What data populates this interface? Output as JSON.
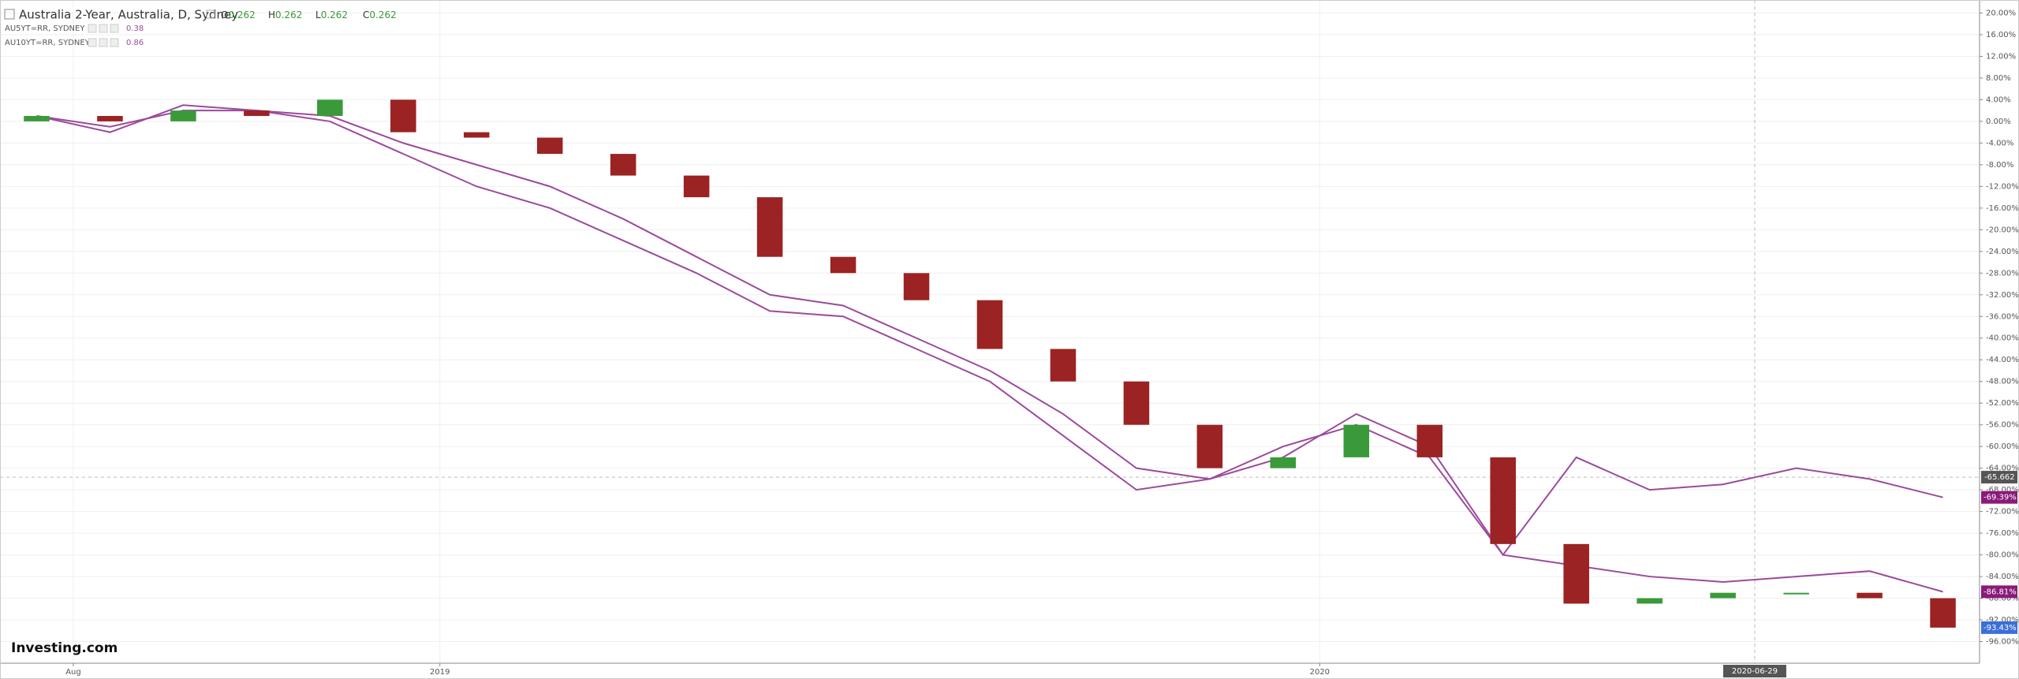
{
  "chart_data": {
    "type": "candlestick",
    "title": "Australia 2-Year, Australia, D, Sydney",
    "ohlc": [
      {
        "label": "O",
        "value": 0.262
      },
      {
        "label": "H",
        "value": 0.262
      },
      {
        "label": "L",
        "value": 0.262
      },
      {
        "label": "C",
        "value": 0.262
      }
    ],
    "x": [
      "2018-07",
      "2018-08",
      "2018-09",
      "2018-10",
      "2018-11",
      "2018-12",
      "2019-01",
      "2019-02",
      "2019-03",
      "2019-04",
      "2019-05",
      "2019-06",
      "2019-07",
      "2019-08",
      "2019-09",
      "2019-10",
      "2019-11",
      "2019-12",
      "2020-01",
      "2020-02",
      "2020-03",
      "2020-04",
      "2020-05",
      "2020-06",
      "2020-07",
      "2020-08",
      "2020-09"
    ],
    "open": [
      0,
      1,
      0,
      2,
      1,
      4,
      -2,
      -3,
      -6,
      -10,
      -14,
      -25,
      -28,
      -33,
      -42,
      -48,
      -56,
      -64,
      -62,
      -56,
      -62,
      -78,
      -89,
      -88,
      -87,
      -87,
      -88
    ],
    "close": [
      1,
      0,
      2,
      1,
      4,
      -2,
      -3,
      -6,
      -10,
      -14,
      -25,
      -28,
      -33,
      -42,
      -48,
      -56,
      -64,
      -62,
      -56,
      -62,
      -78,
      -89,
      -88,
      -87,
      -87,
      -88,
      -93.43
    ],
    "close_last_label": "-93.43%",
    "up_color": "#3a9a3a",
    "down_color": "#9b2323",
    "series": [
      {
        "name": "AU5YT=RR, SYDNEY",
        "legend_value": 0.38,
        "color": "#9c4a9c",
        "last_label": "-86.81%",
        "values": [
          1,
          -1,
          2,
          2,
          1,
          -4,
          -8,
          -12,
          -18,
          -25,
          -32,
          -34,
          -40,
          -46,
          -54,
          -64,
          -66,
          -60,
          -56,
          -62,
          -80,
          -82,
          -84,
          -85,
          -84,
          -83,
          -86.81
        ]
      },
      {
        "name": "AU10YT=RR, SYDNEY",
        "legend_value": 0.86,
        "color": "#9c4a9c",
        "last_label": "-69.39%",
        "values": [
          1,
          -2,
          3,
          2,
          0,
          -6,
          -12,
          -16,
          -22,
          -28,
          -35,
          -36,
          -42,
          -48,
          -58,
          -68,
          -66,
          -62,
          -54,
          -60,
          -80,
          -62,
          -68,
          -67,
          -64,
          -66,
          -69.39
        ]
      }
    ],
    "xlim": [
      "2018-07",
      "2020-10"
    ],
    "xticks": [
      {
        "value": "2018-08",
        "label": "Aug"
      },
      {
        "value": "2019-01",
        "label": "2019"
      },
      {
        "value": "2020-01",
        "label": "2020"
      }
    ],
    "ylim": [
      -100,
      22.4
    ],
    "yticks": [
      {
        "value": 20,
        "label": "20.00%"
      },
      {
        "value": 16,
        "label": "16.00%"
      },
      {
        "value": 12,
        "label": "12.00%"
      },
      {
        "value": 8,
        "label": "8.00%"
      },
      {
        "value": 4,
        "label": "4.00%"
      },
      {
        "value": 0,
        "label": "0.00%"
      },
      {
        "value": -4,
        "label": "-4.00%"
      },
      {
        "value": -8,
        "label": "-8.00%"
      },
      {
        "value": -12,
        "label": "-12.00%"
      },
      {
        "value": -16,
        "label": "-16.00%"
      },
      {
        "value": -20,
        "label": "-20.00%"
      },
      {
        "value": -24,
        "label": "-24.00%"
      },
      {
        "value": -28,
        "label": "-28.00%"
      },
      {
        "value": -32,
        "label": "-32.00%"
      },
      {
        "value": -36,
        "label": "-36.00%"
      },
      {
        "value": -40,
        "label": "-40.00%"
      },
      {
        "value": -44,
        "label": "-44.00%"
      },
      {
        "value": -48,
        "label": "-48.00%"
      },
      {
        "value": -52,
        "label": "-52.00%"
      },
      {
        "value": -56,
        "label": "-56.00%"
      },
      {
        "value": -60,
        "label": "-60.00%"
      },
      {
        "value": -64,
        "label": "-64.00%"
      },
      {
        "value": -68,
        "label": "-68.00%"
      },
      {
        "value": -72,
        "label": "-72.00%"
      },
      {
        "value": -76,
        "label": "-76.00%"
      },
      {
        "value": -80,
        "label": "-80.00%"
      },
      {
        "value": -84,
        "label": "-84.00%"
      },
      {
        "value": -88,
        "label": "-88.00%"
      },
      {
        "value": -92,
        "label": "-92.00%"
      },
      {
        "value": -96,
        "label": "-96.00%"
      }
    ],
    "grid": true,
    "crosshair": {
      "x": "2020-06-29",
      "y": -65.662
    },
    "logo": "Investing.com"
  }
}
